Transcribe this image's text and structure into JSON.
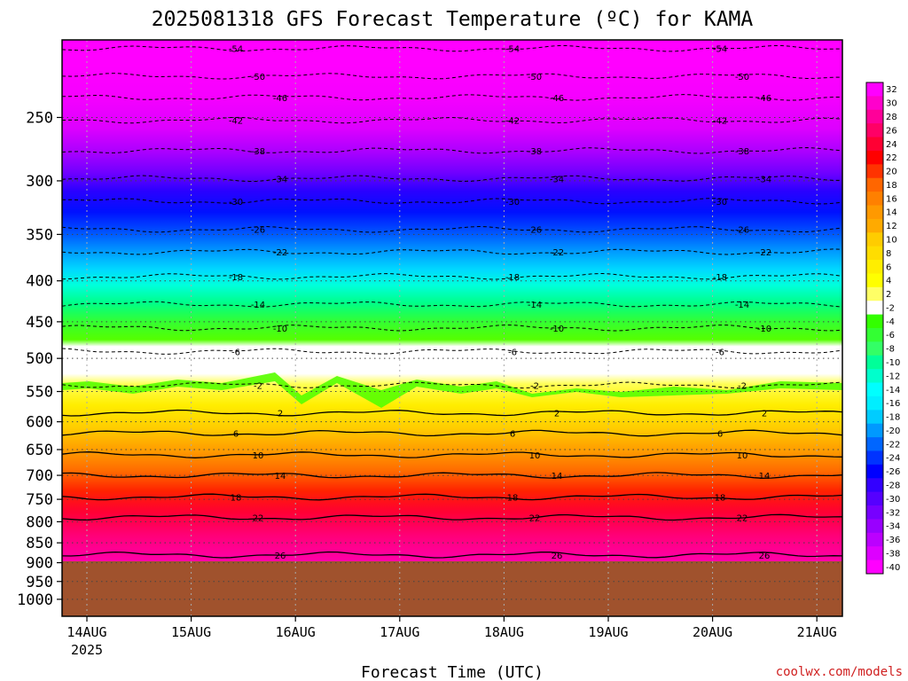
{
  "chart_data": {
    "type": "heatmap",
    "title": "2025081318 GFS Forecast Temperature (ºC) for KAMA",
    "xlabel": "Forecast Time (UTC)",
    "ylabel": "",
    "watermark": "coolwx.com/models",
    "x_ticks": [
      "14AUG",
      "15AUG",
      "16AUG",
      "17AUG",
      "18AUG",
      "19AUG",
      "20AUG",
      "21AUG"
    ],
    "x_year": "2025",
    "y_axis": "pressure (hPa), inverted",
    "y_ticks": [
      "250",
      "300",
      "350",
      "400",
      "450",
      "500",
      "550",
      "600",
      "650",
      "700",
      "750",
      "800",
      "850",
      "900",
      "950",
      "1000"
    ],
    "ground_level_hpa": 900,
    "colorbar": {
      "labels": [
        "32",
        "30",
        "28",
        "26",
        "24",
        "22",
        "20",
        "18",
        "16",
        "14",
        "12",
        "10",
        "8",
        "6",
        "4",
        "2",
        "-2",
        "-4",
        "-6",
        "-8",
        "-10",
        "-12",
        "-14",
        "-16",
        "-18",
        "-20",
        "-22",
        "-24",
        "-26",
        "-28",
        "-30",
        "-32",
        "-34",
        "-36",
        "-38",
        "-40"
      ],
      "colors": [
        "#ff00ff",
        "#ff00cc",
        "#ff0099",
        "#ff0066",
        "#ff0033",
        "#ff0000",
        "#ff3300",
        "#ff6600",
        "#ff8000",
        "#ff9900",
        "#ffaa00",
        "#ffcc00",
        "#ffdd00",
        "#ffee00",
        "#ffff00",
        "#ffff66",
        "#ffffff",
        "#33ff00",
        "#33ff33",
        "#33ff66",
        "#00ff99",
        "#00ffcc",
        "#00ffff",
        "#00eeff",
        "#00ccff",
        "#0099ff",
        "#0066ff",
        "#0033ff",
        "#0000ff",
        "#3300ff",
        "#5500ff",
        "#7700ff",
        "#9900ff",
        "#bb00ff",
        "#dd00ff",
        "#ff00ff"
      ]
    },
    "isotherms": [
      {
        "label": "-54",
        "level_hpa": 205
      },
      {
        "label": "-50",
        "level_hpa": 222
      },
      {
        "label": "-46",
        "level_hpa": 236
      },
      {
        "label": "-42",
        "level_hpa": 252
      },
      {
        "label": "-38",
        "level_hpa": 275
      },
      {
        "label": "-34",
        "level_hpa": 298
      },
      {
        "label": "-30",
        "level_hpa": 318
      },
      {
        "label": "-26",
        "level_hpa": 345
      },
      {
        "label": "-22",
        "level_hpa": 368
      },
      {
        "label": "-18",
        "level_hpa": 395
      },
      {
        "label": "-14",
        "level_hpa": 428
      },
      {
        "label": "-10",
        "level_hpa": 458
      },
      {
        "label": "-6",
        "level_hpa": 490
      },
      {
        "label": "-2",
        "level_hpa": 540
      },
      {
        "label": "2",
        "level_hpa": 585
      },
      {
        "label": "6",
        "level_hpa": 620
      },
      {
        "label": "10",
        "level_hpa": 660
      },
      {
        "label": "14",
        "level_hpa": 700
      },
      {
        "label": "18",
        "level_hpa": 745
      },
      {
        "label": "22",
        "level_hpa": 790
      },
      {
        "label": "26",
        "level_hpa": 880
      }
    ]
  }
}
